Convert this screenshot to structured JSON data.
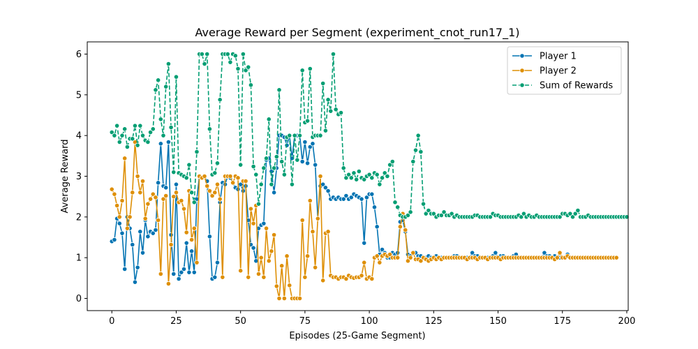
{
  "chart_data": {
    "type": "line",
    "title": "Average Reward per Segment (experiment_cnot_run17_1)",
    "xlabel": "Episodes (25-Game Segment)",
    "ylabel": "Average Reward",
    "xlim": [
      -9.55,
      200.55
    ],
    "ylim": [
      -0.3,
      6.3
    ],
    "xticks": [
      0,
      25,
      50,
      75,
      100,
      125,
      150,
      175,
      200
    ],
    "yticks": [
      0,
      1,
      2,
      3,
      4,
      5,
      6
    ],
    "grid": false,
    "legend_position": "top-right",
    "x_start": 0,
    "series": [
      {
        "name": "Player 1",
        "color": "#0173b2",
        "dash": "solid",
        "values": [
          1.4,
          1.44,
          1.96,
          1.84,
          1.6,
          0.72,
          2.0,
          1.72,
          1.32,
          0.4,
          0.76,
          1.64,
          1.12,
          1.92,
          1.52,
          1.64,
          1.6,
          1.68,
          2.84,
          3.8,
          2.76,
          2.72,
          3.84,
          1.56,
          0.6,
          2.8,
          0.48,
          0.64,
          0.72,
          1.36,
          0.64,
          1.16,
          0.64,
          2.44,
          3.0,
          2.96,
          3.0,
          2.88,
          1.52,
          0.48,
          0.52,
          0.88,
          2.36,
          2.84,
          2.8,
          3.0,
          2.96,
          2.84,
          2.72,
          2.68,
          2.8,
          2.64,
          2.76,
          1.92,
          1.32,
          1.24,
          0.92,
          1.72,
          1.8,
          1.84,
          3.4,
          3.44,
          3.12,
          2.6,
          3.2,
          4.0,
          4.0,
          3.96,
          3.76,
          4.0,
          3.44,
          4.0,
          4.0,
          4.0,
          3.36,
          3.84,
          3.32,
          3.72,
          3.8,
          3.28,
          1.96,
          2.76,
          2.8,
          2.72,
          2.64,
          2.44,
          2.48,
          2.44,
          2.48,
          2.44,
          2.44,
          2.52,
          2.44,
          2.48,
          2.56,
          2.52,
          2.48,
          2.44,
          1.36,
          2.48,
          2.56,
          2.56,
          2.24,
          1.76,
          1.08,
          1.2,
          1.12,
          1.0,
          1.0,
          1.12,
          1.08,
          1.12,
          1.88,
          1.92,
          1.64,
          1.08,
          1.04,
          1.12,
          1.12,
          1.04,
          1.04,
          1.0,
          1.0,
          1.04,
          1.0,
          1.0,
          1.04,
          1.0,
          1.0,
          1.0,
          1.0,
          1.0,
          1.0,
          1.04,
          1.04,
          1.0,
          1.0,
          1.0,
          1.0,
          1.0,
          1.12,
          1.04,
          1.04,
          1.0,
          1.0,
          1.0,
          1.0,
          1.0,
          1.04,
          1.12,
          1.0,
          1.04,
          1.04,
          1.0,
          1.0,
          1.0,
          1.04,
          1.08,
          1.0,
          1.0,
          1.0,
          1.0,
          1.0,
          1.0,
          1.0,
          1.0,
          1.0,
          1.0,
          1.12,
          1.04,
          1.04,
          1.0,
          1.04,
          1.0,
          1.0,
          1.0,
          1.0,
          1.08,
          1.0,
          1.0,
          1.0,
          1.0,
          1.0,
          1.0,
          1.0,
          1.0,
          1.0,
          1.0,
          1.0,
          1.0,
          1.0,
          1.0,
          1.0
        ]
      },
      {
        "name": "Player 2",
        "color": "#de8f05",
        "dash": "solid",
        "values": [
          2.68,
          2.56,
          2.28,
          2.0,
          2.4,
          3.44,
          1.72,
          2.0,
          2.6,
          3.84,
          3.0,
          2.6,
          2.88,
          1.96,
          2.32,
          2.44,
          2.56,
          2.48,
          1.92,
          0.6,
          2.44,
          2.52,
          0.36,
          1.32,
          2.5,
          2.6,
          2.36,
          2.4,
          2.2,
          1.62,
          2.64,
          1.44,
          1.72,
          0.88,
          3.0,
          2.96,
          3.0,
          2.76,
          2.64,
          2.52,
          2.6,
          2.8,
          2.44,
          0.52,
          3.0,
          3.0,
          3.0,
          2.84,
          3.0,
          2.96,
          0.68,
          2.88,
          2.88,
          0.52,
          2.2,
          1.84,
          2.28,
          0.6,
          1.0,
          0.52,
          1.72,
          0.92,
          1.16,
          1.56,
          0.3,
          0.0,
          0.8,
          0.0,
          1.04,
          0.32,
          0.0,
          0.0,
          0.0,
          0.0,
          1.92,
          0.52,
          1.04,
          2.4,
          1.64,
          0.76,
          1.96,
          3.0,
          0.44,
          1.6,
          1.64,
          0.56,
          0.52,
          0.52,
          0.48,
          0.52,
          0.52,
          0.48,
          0.56,
          0.52,
          0.5,
          0.52,
          0.52,
          0.56,
          0.88,
          0.48,
          0.52,
          0.48,
          1.0,
          1.04,
          0.88,
          1.04,
          1.08,
          1.04,
          1.08,
          1.0,
          1.0,
          1.0,
          1.76,
          2.08,
          1.68,
          0.92,
          1.0,
          1.12,
          0.96,
          0.96,
          0.92,
          1.0,
          0.96,
          0.92,
          0.96,
          1.0,
          0.96,
          1.0,
          0.96,
          1.0,
          1.0,
          1.0,
          1.0,
          1.0,
          1.0,
          1.0,
          1.0,
          1.0,
          0.96,
          1.0,
          1.0,
          1.0,
          0.96,
          1.0,
          1.0,
          1.0,
          0.96,
          1.0,
          1.0,
          1.0,
          1.0,
          0.96,
          1.0,
          1.0,
          1.0,
          1.0,
          1.0,
          1.0,
          1.0,
          1.0,
          1.0,
          1.0,
          1.0,
          1.0,
          1.0,
          1.0,
          1.0,
          1.0,
          1.0,
          1.0,
          1.0,
          1.0,
          0.96,
          1.0,
          1.12,
          1.0,
          1.0,
          1.04,
          1.0,
          1.0,
          1.0,
          1.0,
          1.0,
          1.0,
          1.0,
          1.0,
          1.0,
          1.0,
          1.0,
          1.0,
          1.0,
          1.0,
          1.0,
          1.0,
          1.0,
          1.0,
          1.0
        ]
      },
      {
        "name": "Sum of Rewards",
        "color": "#029e73",
        "dash": "dashed",
        "values": [
          4.08,
          4.0,
          4.24,
          3.84,
          4.0,
          4.16,
          3.72,
          3.92,
          3.92,
          4.24,
          3.76,
          4.24,
          4.0,
          3.88,
          3.84,
          4.08,
          4.16,
          5.12,
          5.36,
          4.4,
          4.0,
          5.2,
          5.76,
          4.2,
          3.1,
          5.44,
          3.08,
          3.04,
          3.0,
          2.96,
          3.28,
          2.6,
          2.36,
          3.6,
          6.0,
          6.0,
          5.76,
          6.0,
          4.16,
          3.04,
          3.08,
          3.32,
          4.88,
          6.0,
          6.0,
          6.0,
          5.8,
          6.0,
          5.96,
          5.64,
          3.28,
          6.0,
          5.6,
          5.68,
          5.24,
          3.24,
          3.04,
          2.32,
          2.8,
          3.2,
          3.44,
          4.4,
          2.8,
          3.2,
          3.48,
          5.12,
          3.36,
          3.04,
          3.96,
          4.0,
          2.8,
          4.0,
          3.4,
          4.0,
          5.6,
          4.32,
          4.36,
          5.64,
          3.96,
          4.0,
          4.0,
          4.0,
          5.28,
          4.12,
          4.88,
          4.6,
          6.0,
          4.64,
          4.52,
          4.56,
          3.2,
          2.96,
          3.04,
          2.96,
          3.08,
          2.92,
          3.12,
          2.96,
          2.92,
          3.0,
          3.04,
          2.96,
          3.08,
          3.04,
          2.8,
          2.96,
          3.08,
          3.0,
          3.28,
          3.36,
          2.36,
          2.24,
          2.04,
          2.0,
          2.0,
          2.04,
          2.12,
          3.36,
          3.64,
          4.0,
          3.6,
          2.32,
          2.08,
          2.16,
          2.08,
          2.08,
          2.0,
          2.04,
          2.04,
          2.12,
          2.04,
          2.04,
          2.08,
          2.0,
          2.04,
          2.0,
          2.0,
          2.0,
          2.0,
          2.0,
          2.0,
          2.04,
          2.04,
          2.0,
          2.0,
          2.0,
          2.0,
          2.0,
          2.08,
          2.04,
          2.04,
          2.0,
          2.0,
          2.0,
          2.0,
          2.0,
          2.0,
          2.0,
          2.04,
          2.0,
          2.08,
          2.0,
          2.04,
          2.0,
          2.0,
          2.04,
          2.0,
          2.0,
          2.0,
          2.0,
          2.0,
          2.0,
          2.0,
          2.0,
          2.0,
          2.08,
          2.08,
          2.04,
          2.08,
          2.0,
          2.08,
          2.16,
          2.0,
          2.0,
          2.0,
          2.04,
          2.0,
          2.0,
          2.0,
          2.0,
          2.0,
          2.0,
          2.0,
          2.0,
          2.0,
          2.0,
          2.0,
          2.0,
          2.0,
          2.0,
          2.0
        ]
      }
    ]
  }
}
